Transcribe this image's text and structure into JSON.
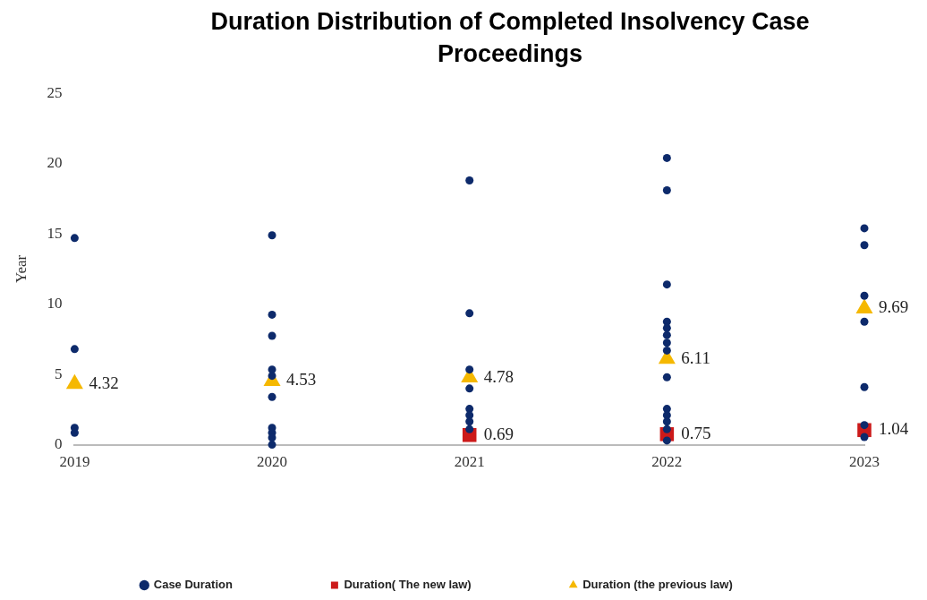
{
  "chart_data": {
    "type": "scatter",
    "title": "Duration Distribution of Completed Insolvency Case Proceedings",
    "ylabel": "Year",
    "xlim": [
      2019,
      2023
    ],
    "xticks": [
      2019,
      2020,
      2021,
      2022,
      2023
    ],
    "ylim": [
      0,
      25
    ],
    "yticks": [
      0,
      5,
      10,
      15,
      20,
      25
    ],
    "grid": false,
    "legend": "bottom",
    "series": [
      {
        "name": "Case Duration",
        "color": "#0d2a6b",
        "marker": "circle",
        "x": [
          2019,
          2019,
          2019,
          2019,
          2020,
          2020,
          2020,
          2020,
          2020,
          2020,
          2020,
          2020,
          2020,
          2020,
          2021,
          2021,
          2021,
          2021,
          2021,
          2021,
          2021,
          2021,
          2022,
          2022,
          2022,
          2022,
          2022,
          2022,
          2022,
          2022,
          2022,
          2022,
          2022,
          2022,
          2022,
          2022,
          2023,
          2023,
          2023,
          2023,
          2023,
          2023,
          2023
        ],
        "values": [
          14.7,
          6.8,
          1.2,
          0.85,
          14.9,
          9.25,
          7.75,
          5.35,
          4.9,
          3.4,
          1.2,
          0.85,
          0.5,
          0,
          18.8,
          9.35,
          5.35,
          4.0,
          2.55,
          2.1,
          1.65,
          1.1,
          20.4,
          18.1,
          11.4,
          8.75,
          8.3,
          7.8,
          7.25,
          6.7,
          4.8,
          2.55,
          2.1,
          1.65,
          1.1,
          0.3,
          15.4,
          14.2,
          10.6,
          8.75,
          4.1,
          1.4,
          0.55
        ]
      },
      {
        "name": "Duration( The new law)",
        "color": "#cc1a1a",
        "marker": "square",
        "x": [
          2021,
          2022,
          2023
        ],
        "values": [
          0.69,
          0.75,
          1.04
        ],
        "value_labels": [
          "0.69",
          "0.75",
          "1.04"
        ]
      },
      {
        "name": "Duration (the previous law)",
        "color": "#f5b800",
        "marker": "triangle",
        "x": [
          2019,
          2020,
          2021,
          2022,
          2023
        ],
        "values": [
          4.32,
          4.53,
          4.78,
          6.11,
          9.69
        ],
        "value_labels": [
          "4.32",
          "4.53",
          "4.78",
          "6.11",
          "9.69"
        ]
      }
    ]
  }
}
